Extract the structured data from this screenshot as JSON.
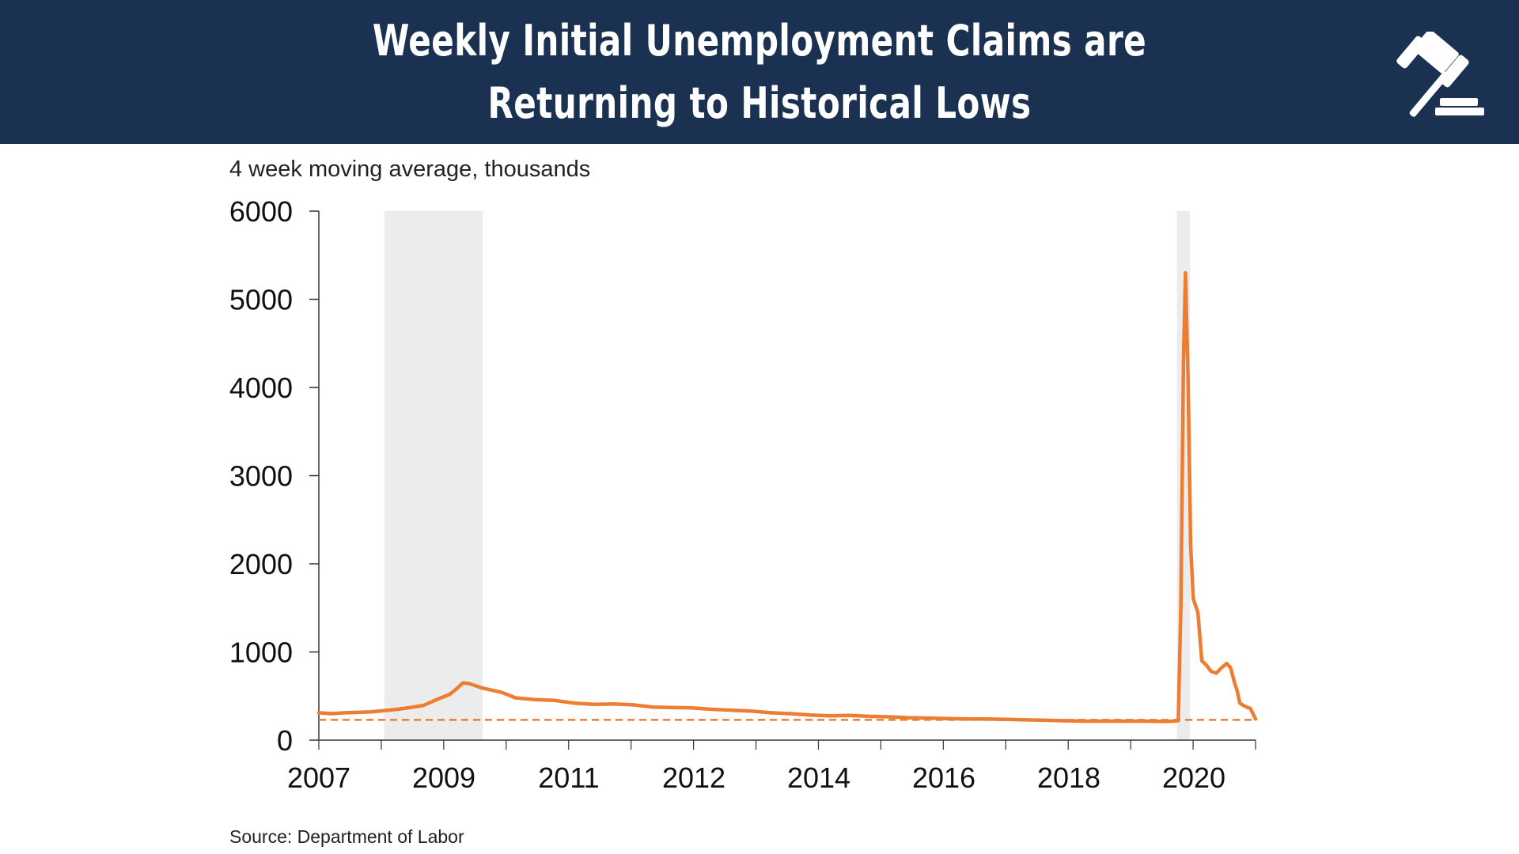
{
  "header": {
    "title_line1": "Weekly Initial Unemployment Claims are",
    "title_line2": "Returning to Historical Lows",
    "icon": "gavel-icon",
    "background": "#1b3152"
  },
  "subtitle": "4 week moving average, thousands",
  "source": "Source: Department of Labor",
  "chart_data": {
    "type": "line",
    "title": "Weekly Initial Unemployment Claims are Returning to Historical Lows",
    "ylabel": "4 week moving average, thousands",
    "ylim": [
      0,
      6000
    ],
    "yticks": [
      0,
      1000,
      2000,
      3000,
      4000,
      5000,
      6000
    ],
    "xlim": [
      2007.0,
      2021.3
    ],
    "x_tick_labels": [
      "2007",
      "2009",
      "2011",
      "2012",
      "2014",
      "2016",
      "2018",
      "2020"
    ],
    "grid": false,
    "colors": {
      "series": "#ed7d31",
      "recession": "#ececec"
    },
    "recessions": [
      [
        2008.0,
        2009.5
      ],
      [
        2020.1,
        2020.3
      ]
    ],
    "reference_line": {
      "value": 230,
      "style": "dashed"
    },
    "series": [
      {
        "values": [
          [
            2007.0,
            310
          ],
          [
            2007.2,
            300
          ],
          [
            2007.4,
            310
          ],
          [
            2007.6,
            315
          ],
          [
            2007.8,
            320
          ],
          [
            2008.0,
            335
          ],
          [
            2008.2,
            350
          ],
          [
            2008.4,
            370
          ],
          [
            2008.6,
            395
          ],
          [
            2008.8,
            460
          ],
          [
            2009.0,
            520
          ],
          [
            2009.1,
            580
          ],
          [
            2009.2,
            650
          ],
          [
            2009.3,
            640
          ],
          [
            2009.5,
            590
          ],
          [
            2009.8,
            540
          ],
          [
            2010.0,
            480
          ],
          [
            2010.3,
            460
          ],
          [
            2010.6,
            450
          ],
          [
            2010.9,
            420
          ],
          [
            2011.2,
            405
          ],
          [
            2011.5,
            410
          ],
          [
            2011.8,
            400
          ],
          [
            2012.1,
            375
          ],
          [
            2012.4,
            370
          ],
          [
            2012.7,
            365
          ],
          [
            2013.0,
            350
          ],
          [
            2013.3,
            340
          ],
          [
            2013.6,
            330
          ],
          [
            2013.9,
            310
          ],
          [
            2014.2,
            300
          ],
          [
            2014.5,
            285
          ],
          [
            2014.8,
            275
          ],
          [
            2015.1,
            280
          ],
          [
            2015.4,
            270
          ],
          [
            2015.7,
            265
          ],
          [
            2016.0,
            255
          ],
          [
            2016.3,
            250
          ],
          [
            2016.6,
            245
          ],
          [
            2016.9,
            240
          ],
          [
            2017.2,
            240
          ],
          [
            2017.5,
            235
          ],
          [
            2017.8,
            230
          ],
          [
            2018.1,
            225
          ],
          [
            2018.4,
            220
          ],
          [
            2018.7,
            215
          ],
          [
            2019.0,
            215
          ],
          [
            2019.3,
            215
          ],
          [
            2019.6,
            215
          ],
          [
            2019.9,
            212
          ],
          [
            2020.05,
            215
          ],
          [
            2020.12,
            220
          ],
          [
            2020.16,
            1500
          ],
          [
            2020.2,
            4300
          ],
          [
            2020.23,
            5300
          ],
          [
            2020.27,
            4100
          ],
          [
            2020.31,
            2200
          ],
          [
            2020.35,
            1600
          ],
          [
            2020.42,
            1450
          ],
          [
            2020.48,
            900
          ],
          [
            2020.55,
            850
          ],
          [
            2020.62,
            780
          ],
          [
            2020.7,
            760
          ],
          [
            2020.78,
            820
          ],
          [
            2020.86,
            870
          ],
          [
            2020.92,
            820
          ],
          [
            2020.98,
            650
          ],
          [
            2021.02,
            560
          ],
          [
            2021.06,
            420
          ],
          [
            2021.12,
            390
          ],
          [
            2021.18,
            370
          ],
          [
            2021.22,
            360
          ],
          [
            2021.26,
            300
          ],
          [
            2021.3,
            240
          ]
        ]
      }
    ]
  }
}
